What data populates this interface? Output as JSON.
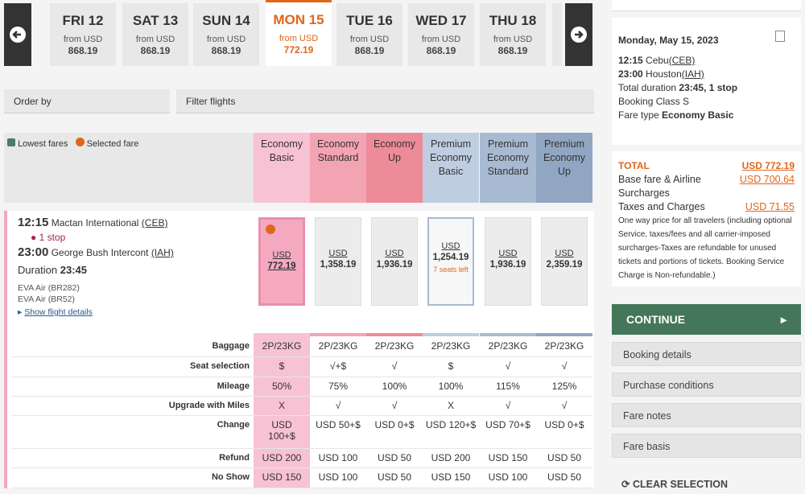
{
  "date_nav": {
    "selected": 3,
    "tabs": [
      {
        "day": "FRI 12",
        "from": "from USD",
        "price": "868.19"
      },
      {
        "day": "SAT 13",
        "from": "from USD",
        "price": "868.19"
      },
      {
        "day": "SUN 14",
        "from": "from USD",
        "price": "868.19"
      },
      {
        "day": "MON 15",
        "from": "from USD",
        "price": "772.19"
      },
      {
        "day": "TUE 16",
        "from": "from USD",
        "price": "868.19"
      },
      {
        "day": "WED 17",
        "from": "from USD",
        "price": "868.19"
      },
      {
        "day": "THU 18",
        "from": "from USD",
        "price": "868.19"
      }
    ]
  },
  "toolbar": {
    "order_by": "Order by",
    "filter": "Filter flights"
  },
  "legend": {
    "lowest": "Lowest fares",
    "selected": "Selected fare"
  },
  "fare_classes": [
    {
      "name": "Economy Basic",
      "color": "#f7c2d4"
    },
    {
      "name": "Economy Standard",
      "color": "#f3a4b2"
    },
    {
      "name": "Economy Up",
      "color": "#ee8b99"
    },
    {
      "name": "Premium Economy Basic",
      "color": "#bfcde0"
    },
    {
      "name": "Premium Economy Standard",
      "color": "#a8bad1"
    },
    {
      "name": "Premium Economy Up",
      "color": "#90a6c2"
    }
  ],
  "flight": {
    "dep_time": "12:15",
    "dep_airport": "Mactan International",
    "dep_code": "(CEB)",
    "stops": "1 stop",
    "arr_time": "23:00",
    "arr_airport": "George Bush Intercont",
    "arr_code": "(IAH)",
    "duration_label": "Duration",
    "duration": "23:45",
    "legs": [
      "EVA Air (BR282)",
      "EVA Air (BR52)"
    ],
    "details": "Show flight details"
  },
  "fares": {
    "selected": 0,
    "items": [
      {
        "currency": "USD",
        "price": "772.19"
      },
      {
        "currency": "USD",
        "price": "1,358.19"
      },
      {
        "currency": "USD",
        "price": "1,936.19"
      },
      {
        "currency": "USD",
        "price": "1,254.19",
        "note": "7 seats left"
      },
      {
        "currency": "USD",
        "price": "1,936.19"
      },
      {
        "currency": "USD",
        "price": "2,359.19"
      }
    ]
  },
  "features": [
    {
      "label": "Baggage",
      "values": [
        "2P/23KG",
        "2P/23KG",
        "2P/23KG",
        "2P/23KG",
        "2P/23KG",
        "2P/23KG"
      ]
    },
    {
      "label": "Seat selection",
      "values": [
        "$",
        "√+$",
        "√",
        "$",
        "√",
        "√"
      ]
    },
    {
      "label": "Mileage",
      "values": [
        "50%",
        "75%",
        "100%",
        "100%",
        "115%",
        "125%"
      ]
    },
    {
      "label": "Upgrade with Miles",
      "values": [
        "X",
        "√",
        "√",
        "X",
        "√",
        "√"
      ]
    },
    {
      "label": "Change",
      "values": [
        "USD 100+$",
        "USD 50+$",
        "USD 0+$",
        "USD 120+$",
        "USD 70+$",
        "USD 0+$"
      ]
    },
    {
      "label": "Refund",
      "values": [
        "USD 200",
        "USD 100",
        "USD 50",
        "USD 200",
        "USD 150",
        "USD 50"
      ]
    },
    {
      "label": "No Show",
      "values": [
        "USD 150",
        "USD 100",
        "USD 50",
        "USD 150",
        "USD 100",
        "USD 50"
      ]
    }
  ],
  "summary": {
    "date": "Monday, May 15, 2023",
    "segments": [
      {
        "time": "12:15",
        "city": "Cebu",
        "code": "(CEB)"
      },
      {
        "time": "23:00",
        "city": "Houston",
        "code": "(IAH)"
      }
    ],
    "duration_label": "Total duration",
    "duration": "23:45, 1 stop",
    "booking_class": "Booking Class S",
    "fare_type_label": "Fare type",
    "fare_type": "Economy Basic"
  },
  "totals": {
    "total_label": "TOTAL",
    "total": "USD 772.19",
    "base_label": "Base fare & Airline Surcharges",
    "base": "USD 700.64",
    "taxes_label": "Taxes and Charges",
    "taxes": "USD 71.55",
    "disclaimer": "One way price for all travelers (including optional Service, taxes/fees and all carrier-imposed surcharges-Taxes are refundable for unused tickets and portions of tickets. Booking Service Charge is Non-refundable.)"
  },
  "actions": {
    "continue": "CONTINUE",
    "links": [
      "Booking details",
      "Purchase conditions",
      "Fare notes",
      "Fare basis"
    ],
    "clear": "CLEAR SELECTION"
  }
}
